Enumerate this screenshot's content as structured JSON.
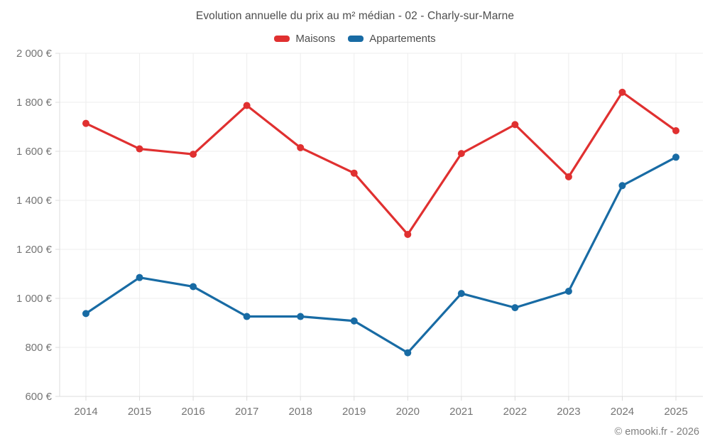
{
  "chart_data": {
    "type": "line",
    "title": "Evolution annuelle du prix au m² médian - 02 - Charly-sur-Marne",
    "categories": [
      "2014",
      "2015",
      "2016",
      "2017",
      "2018",
      "2019",
      "2020",
      "2021",
      "2022",
      "2023",
      "2024",
      "2025"
    ],
    "series": [
      {
        "name": "Maisons",
        "color": "#e03030",
        "values": [
          1714,
          1610,
          1588,
          1787,
          1615,
          1511,
          1261,
          1591,
          1709,
          1496,
          1841,
          1684
        ]
      },
      {
        "name": "Appartements",
        "color": "#186ba4",
        "values": [
          938,
          1085,
          1048,
          926,
          926,
          908,
          778,
          1020,
          962,
          1029,
          1460,
          1576
        ]
      }
    ],
    "ylim": [
      600,
      2000
    ],
    "ytick_step": 200,
    "ytick_labels": [
      "600 €",
      "800 €",
      "1 000 €",
      "1 200 €",
      "1 400 €",
      "1 600 €",
      "1 800 €",
      "2 000 €"
    ],
    "grid": true,
    "legend_position": "top",
    "marker": "circle"
  },
  "footer": {
    "copyright": "© emooki.fr - 2026"
  },
  "colors": {
    "grid": "#ededed",
    "axis": "#dcdcdc",
    "tick_label": "#757575",
    "title_text": "#4d4d4d"
  }
}
